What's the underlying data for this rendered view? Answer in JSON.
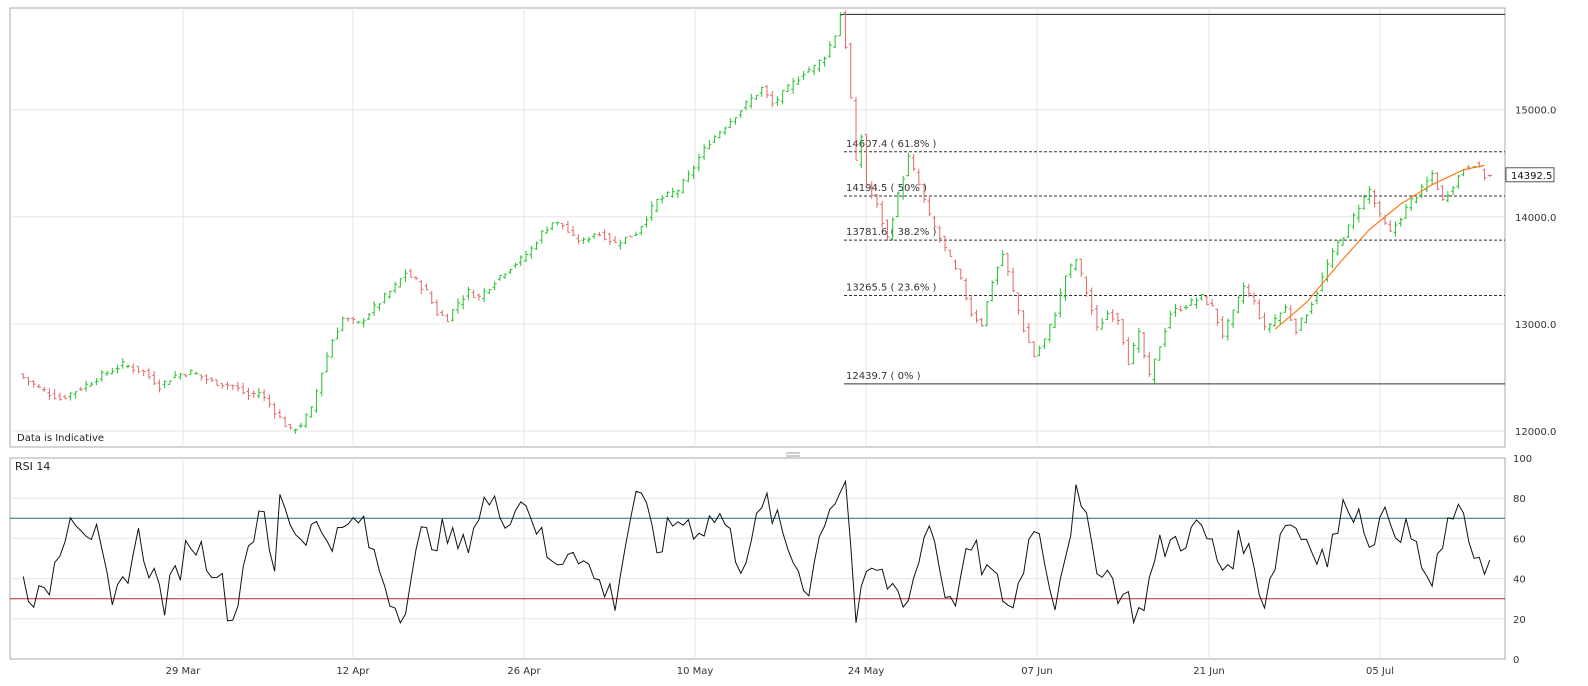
{
  "chart_data": [
    {
      "type": "candlestick",
      "note": "Data is Indicative",
      "ylim": [
        11850,
        15950
      ],
      "y_ticks": [
        "12000.0",
        "13000.0",
        "14000.0",
        "15000.0"
      ],
      "x_ticks": [
        "29 Mar",
        "12 Apr",
        "26 Apr",
        "10 May",
        "24 May",
        "07 Jun",
        "21 Jun",
        "05 Jul"
      ],
      "last_price_label": "14392.5",
      "colors": {
        "up": "#22c32a",
        "down": "#e36a6a",
        "trend": "#ff7a1a"
      },
      "fibonacci": [
        {
          "label": "14607.4 ( 61.8% )",
          "value": 14607.4
        },
        {
          "label": "14194.5 ( 50% )",
          "value": 14194.5
        },
        {
          "label": "13781.6 ( 38.2% )",
          "value": 13781.6
        },
        {
          "label": "13265.5 ( 23.6% )",
          "value": 13265.5
        },
        {
          "label": "12439.7 ( 0% )",
          "value": 12439.7
        }
      ],
      "swing_high": 15890,
      "close_path": [
        [
          0,
          12530
        ],
        [
          4,
          12400
        ],
        [
          8,
          12300
        ],
        [
          12,
          12400
        ],
        [
          16,
          12520
        ],
        [
          20,
          12620
        ],
        [
          24,
          12550
        ],
        [
          27,
          12420
        ],
        [
          30,
          12520
        ],
        [
          33,
          12550
        ],
        [
          37,
          12460
        ],
        [
          41,
          12420
        ],
        [
          44,
          12330
        ],
        [
          46,
          12360
        ],
        [
          48,
          12250
        ],
        [
          50,
          12120
        ],
        [
          52,
          12000
        ],
        [
          54,
          12060
        ],
        [
          56,
          12200
        ],
        [
          58,
          12550
        ],
        [
          60,
          12850
        ],
        [
          62,
          13050
        ],
        [
          65,
          13000
        ],
        [
          68,
          13150
        ],
        [
          70,
          13250
        ],
        [
          72,
          13350
        ],
        [
          74,
          13480
        ],
        [
          76,
          13400
        ],
        [
          78,
          13300
        ],
        [
          80,
          13100
        ],
        [
          82,
          13050
        ],
        [
          84,
          13200
        ],
        [
          86,
          13300
        ],
        [
          88,
          13250
        ],
        [
          90,
          13350
        ],
        [
          92,
          13450
        ],
        [
          94,
          13530
        ],
        [
          96,
          13600
        ],
        [
          98,
          13700
        ],
        [
          100,
          13850
        ],
        [
          102,
          13950
        ],
        [
          104,
          13920
        ],
        [
          106,
          13800
        ],
        [
          108,
          13770
        ],
        [
          110,
          13850
        ],
        [
          112,
          13820
        ],
        [
          114,
          13750
        ],
        [
          116,
          13800
        ],
        [
          118,
          13850
        ],
        [
          120,
          14000
        ],
        [
          122,
          14150
        ],
        [
          124,
          14200
        ],
        [
          126,
          14250
        ],
        [
          128,
          14380
        ],
        [
          130,
          14550
        ],
        [
          132,
          14700
        ],
        [
          134,
          14800
        ],
        [
          136,
          14900
        ],
        [
          138,
          15000
        ],
        [
          140,
          15100
        ],
        [
          142,
          15200
        ],
        [
          144,
          15050
        ],
        [
          146,
          15150
        ],
        [
          148,
          15250
        ],
        [
          150,
          15350
        ],
        [
          152,
          15400
        ],
        [
          154,
          15500
        ],
        [
          156,
          15700
        ],
        [
          157,
          15890
        ],
        [
          158,
          15600
        ],
        [
          159,
          15100
        ],
        [
          160,
          14500
        ],
        [
          161,
          14750
        ],
        [
          162,
          14300
        ],
        [
          164,
          14100
        ],
        [
          166,
          13800
        ],
        [
          168,
          14200
        ],
        [
          170,
          14550
        ],
        [
          172,
          14300
        ],
        [
          174,
          14000
        ],
        [
          176,
          13800
        ],
        [
          178,
          13600
        ],
        [
          180,
          13400
        ],
        [
          182,
          13100
        ],
        [
          184,
          13000
        ],
        [
          186,
          13400
        ],
        [
          188,
          13650
        ],
        [
          190,
          13300
        ],
        [
          192,
          12950
        ],
        [
          194,
          12700
        ],
        [
          196,
          12850
        ],
        [
          198,
          13100
        ],
        [
          200,
          13450
        ],
        [
          202,
          13600
        ],
        [
          204,
          13300
        ],
        [
          206,
          12950
        ],
        [
          208,
          13100
        ],
        [
          210,
          13050
        ],
        [
          212,
          12650
        ],
        [
          214,
          12900
        ],
        [
          216,
          12500
        ],
        [
          218,
          12800
        ],
        [
          220,
          13100
        ],
        [
          222,
          13150
        ],
        [
          224,
          13200
        ],
        [
          226,
          13250
        ],
        [
          228,
          13150
        ],
        [
          230,
          12900
        ],
        [
          232,
          13100
        ],
        [
          234,
          13350
        ],
        [
          236,
          13200
        ],
        [
          238,
          12950
        ],
        [
          240,
          13050
        ],
        [
          242,
          13150
        ],
        [
          244,
          12950
        ],
        [
          246,
          13100
        ],
        [
          248,
          13300
        ],
        [
          250,
          13550
        ],
        [
          252,
          13750
        ],
        [
          254,
          13900
        ],
        [
          256,
          14100
        ],
        [
          258,
          14250
        ],
        [
          260,
          14000
        ],
        [
          262,
          13850
        ],
        [
          264,
          14000
        ],
        [
          266,
          14150
        ],
        [
          268,
          14250
        ],
        [
          270,
          14400
        ],
        [
          272,
          14150
        ],
        [
          274,
          14300
        ],
        [
          276,
          14450
        ],
        [
          278,
          14500
        ],
        [
          280,
          14380
        ]
      ],
      "trend_path": [
        [
          240,
          12950
        ],
        [
          246,
          13200
        ],
        [
          252,
          13550
        ],
        [
          258,
          13880
        ],
        [
          264,
          14120
        ],
        [
          270,
          14300
        ],
        [
          276,
          14440
        ],
        [
          280,
          14480
        ]
      ]
    },
    {
      "type": "line",
      "title": "RSI 14",
      "ylim": [
        0,
        100
      ],
      "y_ticks": [
        "0",
        "20",
        "40",
        "60",
        "80",
        "100"
      ],
      "levels": {
        "overbought": 70,
        "oversold": 30
      },
      "colors": {
        "line": "#111111",
        "overbought": "#1f6f6f",
        "oversold": "#b22a2a"
      },
      "key_points": [
        [
          0,
          40
        ],
        [
          5,
          28
        ],
        [
          10,
          75
        ],
        [
          15,
          60
        ],
        [
          18,
          23
        ],
        [
          23,
          60
        ],
        [
          28,
          28
        ],
        [
          33,
          60
        ],
        [
          38,
          45
        ],
        [
          41,
          18
        ],
        [
          44,
          60
        ],
        [
          47,
          70
        ],
        [
          49,
          40
        ],
        [
          50,
          85
        ],
        [
          53,
          62
        ],
        [
          57,
          65
        ],
        [
          61,
          60
        ],
        [
          65,
          70
        ],
        [
          69,
          45
        ],
        [
          73,
          20
        ],
        [
          77,
          60
        ],
        [
          81,
          62
        ],
        [
          85,
          55
        ],
        [
          89,
          78
        ],
        [
          93,
          72
        ],
        [
          97,
          80
        ],
        [
          102,
          45
        ],
        [
          106,
          58
        ],
        [
          110,
          40
        ],
        [
          114,
          30
        ],
        [
          118,
          85
        ],
        [
          122,
          55
        ],
        [
          126,
          70
        ],
        [
          130,
          65
        ],
        [
          134,
          72
        ],
        [
          138,
          48
        ],
        [
          143,
          78
        ],
        [
          147,
          55
        ],
        [
          151,
          35
        ],
        [
          154,
          72
        ],
        [
          158,
          90
        ],
        [
          160,
          20
        ],
        [
          163,
          45
        ],
        [
          166,
          38
        ],
        [
          170,
          30
        ],
        [
          174,
          70
        ],
        [
          178,
          25
        ],
        [
          182,
          55
        ],
        [
          186,
          40
        ],
        [
          190,
          25
        ],
        [
          194,
          70
        ],
        [
          198,
          30
        ],
        [
          202,
          80
        ],
        [
          206,
          50
        ],
        [
          210,
          35
        ],
        [
          214,
          22
        ],
        [
          218,
          55
        ],
        [
          222,
          60
        ],
        [
          226,
          65
        ],
        [
          230,
          45
        ],
        [
          234,
          60
        ],
        [
          238,
          30
        ],
        [
          242,
          70
        ],
        [
          246,
          60
        ],
        [
          250,
          50
        ],
        [
          254,
          80
        ],
        [
          258,
          62
        ],
        [
          262,
          70
        ],
        [
          266,
          60
        ],
        [
          270,
          35
        ],
        [
          274,
          75
        ],
        [
          278,
          55
        ],
        [
          281,
          46
        ]
      ]
    }
  ]
}
